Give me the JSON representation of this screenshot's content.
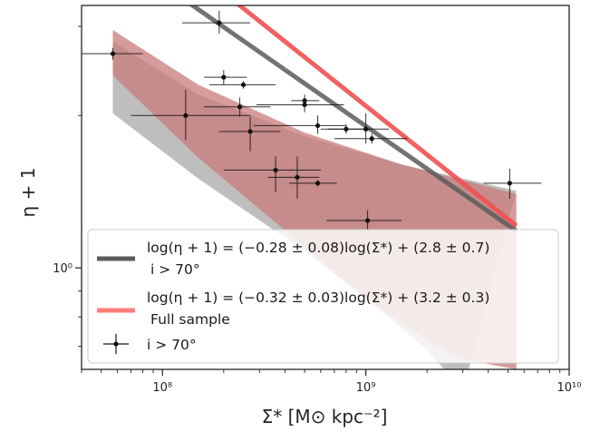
{
  "chart_data": {
    "type": "scatter",
    "xlabel": "Σ* [M⊙ kpc⁻²]",
    "ylabel": "η + 1",
    "xscale": "log",
    "yscale": "log",
    "xlim": [
      40000000,
      10000000000
    ],
    "ylim": [
      0.63,
      3.3
    ],
    "x_ticks": [
      {
        "value": 100000000,
        "label": "10⁸"
      },
      {
        "value": 1000000000,
        "label": "10⁹"
      },
      {
        "value": 10000000000,
        "label": "10¹⁰"
      }
    ],
    "y_ticks": [
      {
        "value": 1.0,
        "label": "10⁰"
      }
    ],
    "fit_range": [
      57000000,
      5500000000
    ],
    "legend_position": "lower-left",
    "series": [
      {
        "kind": "fit",
        "legend_label": "log(η + 1) = (−0.28 ± 0.08)log(Σ*) + (2.8 ± 0.7)",
        "legend_sublabel": "i > 70°",
        "slope": -0.28,
        "intercept": 2.8,
        "line_color": "#5a5a5a",
        "band_color": "#a8a8a8",
        "band_upper": [
          {
            "x": 57000000,
            "y": 2.8
          },
          {
            "x": 150000000,
            "y": 2.2
          },
          {
            "x": 500000000,
            "y": 1.82
          },
          {
            "x": 1500000000,
            "y": 1.6
          },
          {
            "x": 5500000000,
            "y": 1.42
          }
        ],
        "band_lower": [
          {
            "x": 57000000,
            "y": 2.02
          },
          {
            "x": 150000000,
            "y": 1.5
          },
          {
            "x": 500000000,
            "y": 1.08
          },
          {
            "x": 1000000000,
            "y": 0.87
          },
          {
            "x": 2000000000,
            "y": 0.69
          },
          {
            "x": 3000000000,
            "y": 0.57
          }
        ]
      },
      {
        "kind": "fit",
        "legend_label": "log(η + 1) = (−0.32 ± 0.03)log(Σ*) + (3.2 ± 0.3)",
        "legend_sublabel": "Full sample",
        "slope": -0.32,
        "intercept": 3.2,
        "line_color": "#f05050",
        "band_color": "#c87a7a",
        "band_upper": [
          {
            "x": 57000000,
            "y": 2.95
          },
          {
            "x": 150000000,
            "y": 2.3
          },
          {
            "x": 500000000,
            "y": 1.85
          },
          {
            "x": 1500000000,
            "y": 1.6
          },
          {
            "x": 5500000000,
            "y": 1.4
          }
        ],
        "band_lower": [
          {
            "x": 57000000,
            "y": 2.4
          },
          {
            "x": 150000000,
            "y": 1.65
          },
          {
            "x": 500000000,
            "y": 1.1
          },
          {
            "x": 1000000000,
            "y": 0.87
          },
          {
            "x": 2000000000,
            "y": 0.72
          },
          {
            "x": 3000000000,
            "y": 0.66
          },
          {
            "x": 5500000000,
            "y": 0.63
          }
        ]
      },
      {
        "kind": "points",
        "legend_label": "i > 70°",
        "marker_color": "#111111",
        "points": [
          {
            "x": 57000000,
            "y": 2.65,
            "xlo": 40000000,
            "xhi": 80000000,
            "ylo": 2.58,
            "yhi": 2.72
          },
          {
            "x": 190000000,
            "y": 3.05,
            "xlo": 125000000,
            "xhi": 270000000,
            "ylo": 2.9,
            "yhi": 3.22
          },
          {
            "x": 200000000,
            "y": 2.38,
            "xlo": 160000000,
            "xhi": 260000000,
            "ylo": 2.3,
            "yhi": 2.46
          },
          {
            "x": 250000000,
            "y": 2.3,
            "xlo": 170000000,
            "xhi": 360000000,
            "ylo": 2.26,
            "yhi": 2.34
          },
          {
            "x": 130000000,
            "y": 2.0,
            "xlo": 70000000,
            "xhi": 270000000,
            "ylo": 1.79,
            "yhi": 2.25
          },
          {
            "x": 240000000,
            "y": 2.08,
            "xlo": 160000000,
            "xhi": 340000000,
            "ylo": 1.99,
            "yhi": 2.17
          },
          {
            "x": 500000000,
            "y": 2.1,
            "xlo": 290000000,
            "xhi": 780000000,
            "ylo": 2.03,
            "yhi": 2.16
          },
          {
            "x": 500000000,
            "y": 2.14,
            "xlo": 430000000,
            "xhi": 590000000,
            "ylo": 2.08,
            "yhi": 2.2
          },
          {
            "x": 580000000,
            "y": 1.91,
            "xlo": 280000000,
            "xhi": 800000000,
            "ylo": 1.84,
            "yhi": 2.0
          },
          {
            "x": 270000000,
            "y": 1.86,
            "xlo": 190000000,
            "xhi": 380000000,
            "ylo": 1.7,
            "yhi": 1.99
          },
          {
            "x": 800000000,
            "y": 1.88,
            "xlo": 600000000,
            "xhi": 1050000000,
            "ylo": 1.84,
            "yhi": 1.92
          },
          {
            "x": 1000000000,
            "y": 1.88,
            "xlo": 650000000,
            "xhi": 1300000000,
            "ylo": 1.76,
            "yhi": 2.02
          },
          {
            "x": 1070000000,
            "y": 1.8,
            "xlo": 700000000,
            "xhi": 1600000000,
            "ylo": 1.76,
            "yhi": 1.84
          },
          {
            "x": 360000000,
            "y": 1.56,
            "xlo": 200000000,
            "xhi": 600000000,
            "ylo": 1.41,
            "yhi": 1.66
          },
          {
            "x": 460000000,
            "y": 1.51,
            "xlo": 330000000,
            "xhi": 590000000,
            "ylo": 1.37,
            "yhi": 1.66
          },
          {
            "x": 580000000,
            "y": 1.47,
            "xlo": 420000000,
            "xhi": 720000000,
            "ylo": 1.45,
            "yhi": 1.49
          },
          {
            "x": 1020000000,
            "y": 1.24,
            "xlo": 640000000,
            "xhi": 1500000000,
            "ylo": 1.19,
            "yhi": 1.3
          },
          {
            "x": 5100000000,
            "y": 1.47,
            "xlo": 3800000000,
            "xhi": 7300000000,
            "ylo": 1.37,
            "yhi": 1.57
          }
        ]
      }
    ]
  }
}
